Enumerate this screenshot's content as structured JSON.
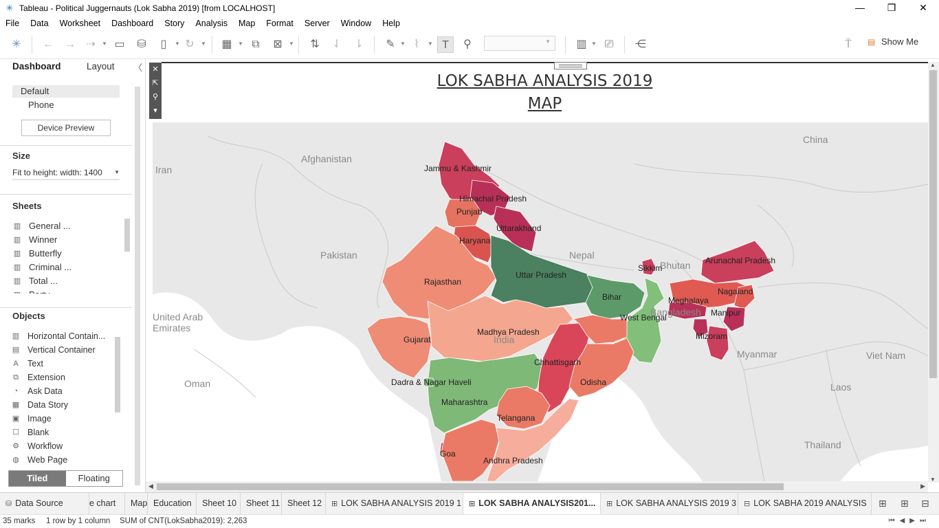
{
  "window": {
    "title": "Tableau - Political Juggernauts (Lok Sabha 2019) [from LOCALHOST]",
    "minimize": "—",
    "restore": "❐",
    "close": "✕"
  },
  "menu": [
    "File",
    "Data",
    "Worksheet",
    "Dashboard",
    "Story",
    "Analysis",
    "Map",
    "Format",
    "Server",
    "Window",
    "Help"
  ],
  "toolbar": {
    "show_me_label": "Show Me"
  },
  "sidebar": {
    "tabs": {
      "dashboard": "Dashboard",
      "layout": "Layout"
    },
    "device": {
      "default": "Default",
      "phone": "Phone",
      "preview_button": "Device Preview"
    },
    "size": {
      "heading": "Size",
      "value": "Fit to height: width: 1400"
    },
    "sheets": {
      "heading": "Sheets",
      "items": [
        "General ...",
        "Winner",
        "Butterfly",
        "Criminal ...",
        "Total ...",
        "Party ..."
      ]
    },
    "objects": {
      "heading": "Objects",
      "items": [
        {
          "label": "Horizontal Contain...",
          "icon": "horizontal-container-icon",
          "glyph": "▥"
        },
        {
          "label": "Vertical Container",
          "icon": "vertical-container-icon",
          "glyph": "▤"
        },
        {
          "label": "Text",
          "icon": "text-icon",
          "glyph": "A"
        },
        {
          "label": "Extension",
          "icon": "extension-icon",
          "glyph": "⧉"
        },
        {
          "label": "Ask Data",
          "icon": "ask-data-icon",
          "glyph": "◔"
        },
        {
          "label": "Data Story",
          "icon": "data-story-icon",
          "glyph": "▦"
        },
        {
          "label": "Image",
          "icon": "image-icon",
          "glyph": "▣"
        },
        {
          "label": "Blank",
          "icon": "blank-icon",
          "glyph": "☐"
        },
        {
          "label": "Workflow",
          "icon": "workflow-icon",
          "glyph": "⚙"
        },
        {
          "label": "Web Page",
          "icon": "web-page-icon",
          "glyph": "◍"
        }
      ]
    },
    "tiled": "Tiled",
    "floating": "Floating"
  },
  "dashboard": {
    "title_line1": "LOK SABHA ANALYSIS 2019",
    "title_line2": "MAP"
  },
  "map": {
    "countries": [
      "China",
      "Afghanistan",
      "Iran",
      "Pakistan",
      "Nepal",
      "Bhutan",
      "Bangladesh",
      "India",
      "Myanmar",
      "Viet Nam",
      "Laos",
      "Thailand",
      "Oman",
      "United Arab\nEmirates"
    ],
    "states": [
      {
        "name": "Jammu & Kashmir",
        "color": "#c93f5c"
      },
      {
        "name": "Himachal Pradesh",
        "color": "#b83058"
      },
      {
        "name": "Punjab",
        "color": "#e5735f"
      },
      {
        "name": "Uttarakhand",
        "color": "#b83058"
      },
      {
        "name": "Haryana",
        "color": "#d9544f"
      },
      {
        "name": "Rajasthan",
        "color": "#ee8c76"
      },
      {
        "name": "Uttar Pradesh",
        "color": "#4b8060"
      },
      {
        "name": "Bihar",
        "color": "#5d9a69"
      },
      {
        "name": "Sikkim",
        "color": "#c93f5c"
      },
      {
        "name": "Arunachal Pradesh",
        "color": "#c93f5c"
      },
      {
        "name": "Nagaland",
        "color": "#e05a52"
      },
      {
        "name": "Meghalaya",
        "color": "#b83058"
      },
      {
        "name": "Manipur",
        "color": "#b83058"
      },
      {
        "name": "Mizoram",
        "color": "#c93f5c"
      },
      {
        "name": "West Bengal",
        "color": "#82bf7a"
      },
      {
        "name": "Gujarat",
        "color": "#ee8c76"
      },
      {
        "name": "Madhya Pradesh",
        "color": "#f4a68f"
      },
      {
        "name": "Chhattisgarh",
        "color": "#d9465a"
      },
      {
        "name": "Odisha",
        "color": "#ea7a66"
      },
      {
        "name": "Dadra & Nagar Haveli",
        "color": "#7fb977"
      },
      {
        "name": "Maharashtra",
        "color": "#7fb977"
      },
      {
        "name": "Telangana",
        "color": "#ea7a66"
      },
      {
        "name": "Goa",
        "color": "#c93f5c"
      },
      {
        "name": "Andhra Pradesh",
        "color": "#f6ad9c"
      }
    ]
  },
  "tabs": [
    {
      "label": "Data Source",
      "icon": "database-icon",
      "glyph": "⛁"
    },
    {
      "label": "e chart"
    },
    {
      "label": "Map"
    },
    {
      "label": "Education"
    },
    {
      "label": "Sheet 10"
    },
    {
      "label": "Sheet 11"
    },
    {
      "label": "Sheet 12"
    },
    {
      "label": "LOK SABHA ANALYSIS 2019  1",
      "icon": "dashboard-icon",
      "glyph": "⊞"
    },
    {
      "label": "LOK SABHA ANALYSIS201...",
      "icon": "dashboard-icon",
      "glyph": "⊞",
      "active": true
    },
    {
      "label": "LOK SABHA ANALYSIS 2019 3",
      "icon": "dashboard-icon",
      "glyph": "⊞"
    },
    {
      "label": "LOK SABHA 2019 ANALYSIS",
      "icon": "story-icon",
      "glyph": "⊟"
    }
  ],
  "status": {
    "marks": "35 marks",
    "rows": "1 row by 1 column",
    "sum": "SUM of CNT(LokSabha2019): 2,263"
  }
}
